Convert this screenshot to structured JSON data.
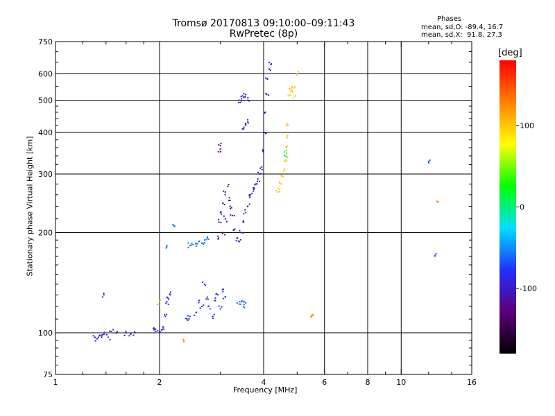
{
  "header": {
    "title_line1": "Tromsø 20170813 09:10:00–09:11:43",
    "title_line2": "RwPretec (8p)"
  },
  "phase_info": {
    "heading": "Phases",
    "line_O": "mean, sd,O: -89.4, 16.7",
    "line_X": "mean, sd,X:  91.8, 27.3"
  },
  "colorbar": {
    "label": "[deg]",
    "ticks": [
      {
        "value": 100,
        "label": "100"
      },
      {
        "value": 0,
        "label": "0"
      },
      {
        "value": -100,
        "label": "-100"
      }
    ],
    "range": [
      -180,
      180
    ],
    "colors": [
      "#000000",
      "#5a007a",
      "#2030ff",
      "#00e0ff",
      "#00ff00",
      "#ffff00",
      "#ff8000",
      "#ff0000"
    ]
  },
  "chart_data": {
    "type": "scatter",
    "title": "Tromsø 20170813 09:10:00–09:11:43",
    "subtitle": "RwPretec (8p)",
    "xlabel": "Frequency [MHz]",
    "ylabel": "Stationary phase Virtual Height [km]",
    "xscale": "log",
    "yscale": "log",
    "xlim": [
      1,
      16
    ],
    "ylim": [
      75,
      750
    ],
    "xticks": [
      1,
      2,
      4,
      6,
      8,
      10,
      16
    ],
    "yticks": [
      75,
      100,
      200,
      300,
      400,
      500,
      600,
      750
    ],
    "grid": true,
    "color_by": "phase [deg]",
    "series": [
      {
        "values": [
          [
            1.3,
            97
          ],
          [
            1.32,
            96
          ],
          [
            1.34,
            98
          ],
          [
            1.36,
            97
          ],
          [
            1.38,
            99
          ],
          [
            1.42,
            97
          ],
          [
            1.45,
            101
          ],
          [
            1.5,
            100
          ],
          [
            1.6,
            100
          ],
          [
            1.65,
            99
          ],
          [
            1.7,
            100
          ],
          [
            1.38,
            130
          ]
        ],
        "phase": -100
      },
      {
        "values": [
          [
            1.92,
            103
          ],
          [
            1.95,
            101
          ],
          [
            2.0,
            101
          ],
          [
            2.03,
            102
          ],
          [
            2.05,
            104
          ],
          [
            2.08,
            112
          ],
          [
            2.1,
            124
          ],
          [
            2.1,
            128
          ],
          [
            2.15,
            130
          ]
        ],
        "phase": -95
      },
      {
        "values": [
          [
            2.4,
            110
          ],
          [
            2.45,
            112
          ],
          [
            2.55,
            115
          ],
          [
            2.6,
            125
          ],
          [
            2.65,
            120
          ],
          [
            2.7,
            140
          ],
          [
            2.75,
            128
          ],
          [
            2.8,
            118
          ],
          [
            2.85,
            112
          ],
          [
            2.9,
            125
          ],
          [
            2.95,
            130
          ],
          [
            3.0,
            118
          ],
          [
            3.05,
            133
          ],
          [
            3.1,
            128
          ]
        ],
        "phase": -80
      },
      {
        "values": [
          [
            2.1,
            183
          ],
          [
            2.2,
            210
          ],
          [
            2.45,
            183
          ],
          [
            2.5,
            184
          ],
          [
            2.55,
            185
          ],
          [
            2.6,
            188
          ],
          [
            2.65,
            186
          ],
          [
            2.7,
            190
          ],
          [
            2.75,
            194
          ]
        ],
        "phase": -60
      },
      {
        "values": [
          [
            2.95,
            195
          ],
          [
            2.97,
            215
          ],
          [
            3.0,
            230
          ],
          [
            3.05,
            245
          ],
          [
            3.1,
            265
          ],
          [
            3.15,
            275
          ],
          [
            3.2,
            250
          ],
          [
            3.25,
            225
          ],
          [
            3.3,
            205
          ],
          [
            3.35,
            192
          ],
          [
            3.4,
            188
          ],
          [
            3.45,
            200
          ],
          [
            3.5,
            215
          ],
          [
            3.55,
            230
          ],
          [
            3.6,
            240
          ],
          [
            3.65,
            255
          ],
          [
            3.7,
            262
          ],
          [
            3.75,
            270
          ],
          [
            3.8,
            280
          ],
          [
            3.85,
            290
          ],
          [
            3.9,
            300
          ],
          [
            3.95,
            315
          ],
          [
            4.0,
            350
          ],
          [
            4.02,
            400
          ],
          [
            4.05,
            460
          ],
          [
            4.08,
            520
          ],
          [
            4.1,
            580
          ],
          [
            4.15,
            620
          ],
          [
            4.2,
            640
          ]
        ],
        "phase": -105
      },
      {
        "values": [
          [
            3.4,
            500
          ],
          [
            3.45,
            505
          ],
          [
            3.5,
            510
          ],
          [
            3.55,
            520
          ],
          [
            3.6,
            500
          ],
          [
            3.55,
            420
          ],
          [
            3.5,
            410
          ],
          [
            3.6,
            430
          ]
        ],
        "phase": -100
      },
      {
        "values": [
          [
            3.0,
            350
          ],
          [
            3.0,
            365
          ],
          [
            3.05,
            200
          ],
          [
            3.1,
            220
          ],
          [
            3.2,
            240
          ]
        ],
        "phase": -130
      },
      {
        "values": [
          [
            3.4,
            122
          ],
          [
            3.45,
            124
          ],
          [
            3.5,
            120
          ],
          [
            3.55,
            123
          ]
        ],
        "phase": -60
      },
      {
        "values": [
          [
            4.4,
            265
          ],
          [
            4.45,
            270
          ],
          [
            4.5,
            280
          ],
          [
            4.55,
            295
          ],
          [
            4.6,
            310
          ],
          [
            4.62,
            330
          ],
          [
            4.65,
            360
          ],
          [
            4.68,
            390
          ],
          [
            4.7,
            420
          ],
          [
            4.75,
            520
          ],
          [
            4.8,
            540
          ],
          [
            4.85,
            530
          ],
          [
            4.9,
            545
          ],
          [
            4.95,
            515
          ],
          [
            5.0,
            600
          ]
        ],
        "phase": 100
      },
      {
        "values": [
          [
            4.6,
            350
          ],
          [
            4.62,
            340
          ]
        ],
        "phase": 30
      },
      {
        "values": [
          [
            5.5,
            113
          ],
          [
            5.55,
            113
          ],
          [
            12.8,
            248
          ],
          [
            2.35,
            94
          ],
          [
            2.0,
            124
          ]
        ],
        "phase": 120
      },
      {
        "values": [
          [
            12.1,
            330
          ],
          [
            12.5,
            170
          ]
        ],
        "phase": -70
      }
    ]
  }
}
